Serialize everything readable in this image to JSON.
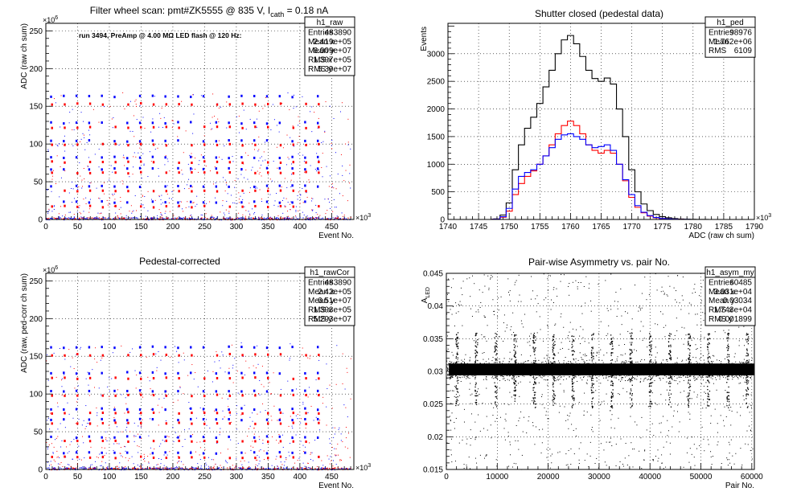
{
  "panels": [
    {
      "id": "raw",
      "title": "Filter wheel scan: pmt#ZK5555 @   835 V, I",
      "title_sub": "cath",
      "title_tail": " = 0.18 nA",
      "annotation": "run 3494, PreAmp @ 4.00 MΩ LED flash @  120 Hz:",
      "ylabel": "ADC (raw ch sum)",
      "xlabel": "Event No.",
      "x_exp": "×10",
      "x_exp_pow": "3",
      "y_exp": "×10",
      "y_exp_pow": "6",
      "stats": {
        "name": "h1_raw",
        "rows": [
          [
            "Entries",
            "483890"
          ],
          [
            "Mean x",
            "2.419e+05"
          ],
          [
            "Mean y",
            "6.009e+07"
          ],
          [
            "RMS x",
            "1.397e+05"
          ],
          [
            "RMS y",
            "5.39e+07"
          ]
        ]
      }
    },
    {
      "id": "ped",
      "title": "Shutter closed (pedestal data)",
      "ylabel": "Events",
      "xlabel": "ADC (raw ch sum)",
      "x_exp": "×10",
      "x_exp_pow": "3",
      "stats": {
        "name": "h1_ped",
        "rows": [
          [
            "Entries",
            "98976"
          ],
          [
            "Mean",
            "1.762e+06"
          ],
          [
            "RMS",
            "6109"
          ]
        ]
      }
    },
    {
      "id": "cor",
      "title": "Pedestal-corrected",
      "ylabel": "ADC (raw, ped-corr ch sum)",
      "xlabel": "Event No.",
      "x_exp": "×10",
      "x_exp_pow": "3",
      "y_exp": "×10",
      "y_exp_pow": "6",
      "stats": {
        "name": "h1_rawCor",
        "rows": [
          [
            "Entries",
            "483890"
          ],
          [
            "Mean x",
            "2.42e+05"
          ],
          [
            "Mean y",
            "6.51e+07"
          ],
          [
            "RMS x",
            "1.393e+05"
          ],
          [
            "RMS y",
            "5.293e+07"
          ]
        ]
      }
    },
    {
      "id": "asym",
      "title": "Pair-wise Asymmetry vs. pair No.",
      "ylabel": "A",
      "ylabel_sub": "LED",
      "xlabel": "Pair No.",
      "stats": {
        "name": "h1_asym_my",
        "rows": [
          [
            "Entries",
            "60485"
          ],
          [
            "Mean x",
            "3.031e+04"
          ],
          [
            "Mean y",
            "0.03034"
          ],
          [
            "RMS x",
            "1.743e+04"
          ],
          [
            "RMS y",
            "0.001899"
          ]
        ]
      }
    }
  ],
  "chart_data": [
    {
      "type": "scatter",
      "title": "Filter wheel scan: pmt#ZK5555 @   835 V, Icath = 0.18 nA",
      "xlabel": "Event No.",
      "ylabel": "ADC (raw ch sum)",
      "xlim": [
        0,
        485
      ],
      "ylim": [
        0,
        260
      ],
      "x_ticks": [
        0,
        50,
        100,
        150,
        200,
        250,
        300,
        350,
        400,
        450
      ],
      "y_ticks": [
        0,
        50,
        100,
        150,
        200,
        250
      ],
      "grid": true,
      "series": [
        {
          "color": "#0000ff",
          "levels": [
            163,
            128,
            104,
            82,
            67,
            44,
            23
          ]
        },
        {
          "color": "#ff0000",
          "levels": [
            153,
            122,
            99,
            76,
            62,
            38,
            17
          ]
        }
      ],
      "step_x": [
        8,
        28,
        48,
        68,
        88,
        108,
        128,
        148,
        168,
        188,
        208,
        228,
        248,
        268,
        288,
        308,
        328,
        348,
        368,
        388,
        408,
        428
      ]
    },
    {
      "type": "line",
      "title": "Shutter closed (pedestal data)",
      "xlabel": "ADC (raw ch sum)",
      "ylabel": "Events",
      "xlim": [
        1740,
        1790
      ],
      "ylim": [
        0,
        3550
      ],
      "x_ticks": [
        1740,
        1745,
        1750,
        1755,
        1760,
        1765,
        1770,
        1775,
        1780,
        1785,
        1790
      ],
      "y_ticks": [
        0,
        500,
        1000,
        1500,
        2000,
        2500,
        3000
      ],
      "grid": true,
      "x": [
        1748,
        1749,
        1750,
        1751,
        1752,
        1753,
        1754,
        1755,
        1756,
        1757,
        1758,
        1759,
        1760,
        1761,
        1762,
        1763,
        1764,
        1765,
        1766,
        1767,
        1768,
        1769,
        1770,
        1771,
        1772,
        1773,
        1774,
        1775,
        1776,
        1777,
        1778,
        1779,
        1780,
        1781,
        1782,
        1783,
        1784,
        1785
      ],
      "series": [
        {
          "color": "#000000",
          "values": [
            10,
            80,
            300,
            900,
            1350,
            1650,
            1850,
            2100,
            2400,
            2700,
            3000,
            3250,
            3330,
            3180,
            2950,
            2700,
            2550,
            2500,
            2560,
            2450,
            2000,
            1500,
            900,
            500,
            280,
            160,
            90,
            50,
            30,
            15,
            8,
            5,
            3,
            2,
            1,
            0,
            0,
            0
          ]
        },
        {
          "color": "#ff0000",
          "values": [
            5,
            40,
            150,
            450,
            650,
            780,
            880,
            1000,
            1150,
            1350,
            1550,
            1700,
            1780,
            1700,
            1550,
            1350,
            1250,
            1200,
            1250,
            1200,
            1000,
            700,
            400,
            220,
            120,
            60,
            30,
            15,
            8,
            3,
            1,
            0,
            0,
            0,
            0,
            0,
            0,
            0
          ]
        },
        {
          "color": "#0000ff",
          "values": [
            5,
            50,
            200,
            550,
            780,
            850,
            900,
            1000,
            1150,
            1300,
            1450,
            1530,
            1550,
            1500,
            1450,
            1350,
            1300,
            1320,
            1350,
            1250,
            1000,
            720,
            450,
            250,
            130,
            70,
            35,
            18,
            10,
            4,
            2,
            1,
            0,
            0,
            0,
            0,
            0,
            0
          ]
        }
      ]
    },
    {
      "type": "scatter",
      "title": "Pedestal-corrected",
      "xlabel": "Event No.",
      "ylabel": "ADC (raw, ped-corr ch sum)",
      "xlim": [
        0,
        485
      ],
      "ylim": [
        0,
        260
      ],
      "x_ticks": [
        0,
        50,
        100,
        150,
        200,
        250,
        300,
        350,
        400,
        450
      ],
      "y_ticks": [
        0,
        50,
        100,
        150,
        200,
        250
      ],
      "grid": true,
      "series": [
        {
          "color": "#0000ff",
          "levels": [
            162,
            128,
            104,
            80,
            66,
            43,
            22
          ]
        },
        {
          "color": "#ff0000",
          "levels": [
            152,
            121,
            98,
            75,
            61,
            37,
            16
          ]
        }
      ],
      "step_x": [
        8,
        28,
        48,
        68,
        88,
        108,
        128,
        148,
        168,
        188,
        208,
        228,
        248,
        268,
        288,
        308,
        328,
        348,
        368,
        388,
        408,
        428
      ]
    },
    {
      "type": "scatter",
      "title": "Pair-wise Asymmetry vs. pair No.",
      "xlabel": "Pair No.",
      "ylabel": "ALED",
      "xlim": [
        0,
        60500
      ],
      "ylim": [
        0.015,
        0.045
      ],
      "x_ticks": [
        0,
        10000,
        20000,
        30000,
        40000,
        50000,
        60000
      ],
      "y_ticks": [
        0.015,
        0.02,
        0.025,
        0.03,
        0.035,
        0.04,
        0.045
      ],
      "grid": true,
      "band_center": 0.0303,
      "band_halfwidth": 0.0009,
      "spike_x": [
        2000,
        5800,
        9600,
        13400,
        17200,
        21000,
        24800,
        28600,
        32400,
        36200,
        40000,
        43800,
        47600,
        51400,
        55200,
        59000
      ],
      "spike_top": 0.036,
      "spike_bottom": 0.0245
    }
  ]
}
